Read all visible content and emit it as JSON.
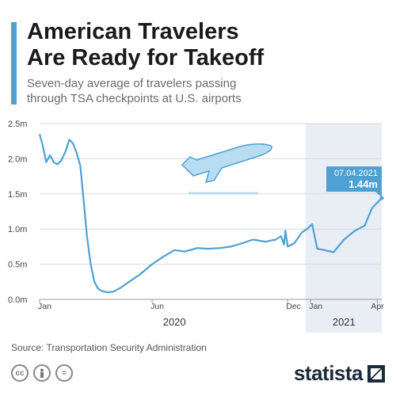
{
  "header": {
    "title_line1": "American Travelers",
    "title_line2": "Are Ready for Takeoff",
    "subtitle_line1": "Seven-day average of travelers passing",
    "subtitle_line2": "through TSA checkpoints at U.S. airports"
  },
  "footer": {
    "source": "Source: Transportation Security Administration",
    "icons": [
      "cc-icon",
      "person-icon",
      "equals-icon"
    ],
    "brand": "statista"
  },
  "colors": {
    "line": "#4ea1d3",
    "highlight_band": "#e9eef5",
    "accent": "#4ea1d3",
    "callout": "#4ea1d3"
  },
  "chart_data": {
    "type": "line",
    "title": "American Travelers Are Ready for Takeoff",
    "subtitle": "Seven-day average of travelers passing through TSA checkpoints at U.S. airports",
    "ylabel": "",
    "ylim": [
      0,
      2.5
    ],
    "y_ticks": [
      0,
      0.5,
      1.0,
      1.5,
      2.0,
      2.5
    ],
    "y_tick_labels": [
      "0.0m",
      "0.5m",
      "1.0m",
      "1.5m",
      "2.0m",
      "2.5m"
    ],
    "x_ticks": [
      {
        "label": "Jan",
        "date": "2020-01-01"
      },
      {
        "label": "Jun",
        "date": "2020-06-01"
      },
      {
        "label": "Dec",
        "date": "2020-12-01"
      },
      {
        "label": "Jan",
        "date": "2021-01-01"
      },
      {
        "label": "Apr",
        "date": "2021-04-01"
      }
    ],
    "year_labels": [
      {
        "label": "2020",
        "date": "2020-07-01"
      },
      {
        "label": "2021",
        "date": "2021-02-15"
      }
    ],
    "x_range": [
      "2020-01-01",
      "2021-04-07"
    ],
    "highlight_range": [
      "2020-12-25",
      "2021-04-07"
    ],
    "grid": true,
    "legend": "none",
    "annotation": {
      "date": "07.04.2021",
      "value": "1.44m"
    },
    "series": [
      {
        "x": [
          "2020-01-01",
          "2020-01-05",
          "2020-01-10",
          "2020-01-15",
          "2020-01-20",
          "2020-01-25",
          "2020-01-30",
          "2020-02-05",
          "2020-02-10",
          "2020-02-15",
          "2020-02-20",
          "2020-02-25",
          "2020-03-01",
          "2020-03-05",
          "2020-03-10",
          "2020-03-15",
          "2020-03-20",
          "2020-03-25",
          "2020-04-01",
          "2020-04-10",
          "2020-04-20",
          "2020-05-01",
          "2020-05-15",
          "2020-06-01",
          "2020-06-15",
          "2020-07-01",
          "2020-07-15",
          "2020-08-01",
          "2020-08-15",
          "2020-09-01",
          "2020-09-15",
          "2020-10-01",
          "2020-10-15",
          "2020-11-01",
          "2020-11-15",
          "2020-11-22",
          "2020-11-26",
          "2020-11-28",
          "2020-12-01",
          "2020-12-10",
          "2020-12-20",
          "2020-12-27",
          "2021-01-03",
          "2021-01-10",
          "2021-01-20",
          "2021-02-01",
          "2021-02-15",
          "2021-03-01",
          "2021-03-15",
          "2021-03-25",
          "2021-04-07"
        ],
        "values": [
          2.35,
          2.2,
          1.95,
          2.05,
          1.95,
          1.92,
          1.97,
          2.1,
          2.27,
          2.22,
          2.08,
          1.9,
          1.35,
          0.9,
          0.5,
          0.25,
          0.15,
          0.12,
          0.1,
          0.11,
          0.17,
          0.25,
          0.35,
          0.5,
          0.6,
          0.7,
          0.68,
          0.73,
          0.72,
          0.73,
          0.75,
          0.8,
          0.85,
          0.82,
          0.85,
          0.9,
          0.78,
          0.98,
          0.75,
          0.8,
          0.95,
          1.0,
          1.07,
          0.72,
          0.7,
          0.67,
          0.85,
          0.97,
          1.05,
          1.3,
          1.44
        ]
      }
    ]
  }
}
